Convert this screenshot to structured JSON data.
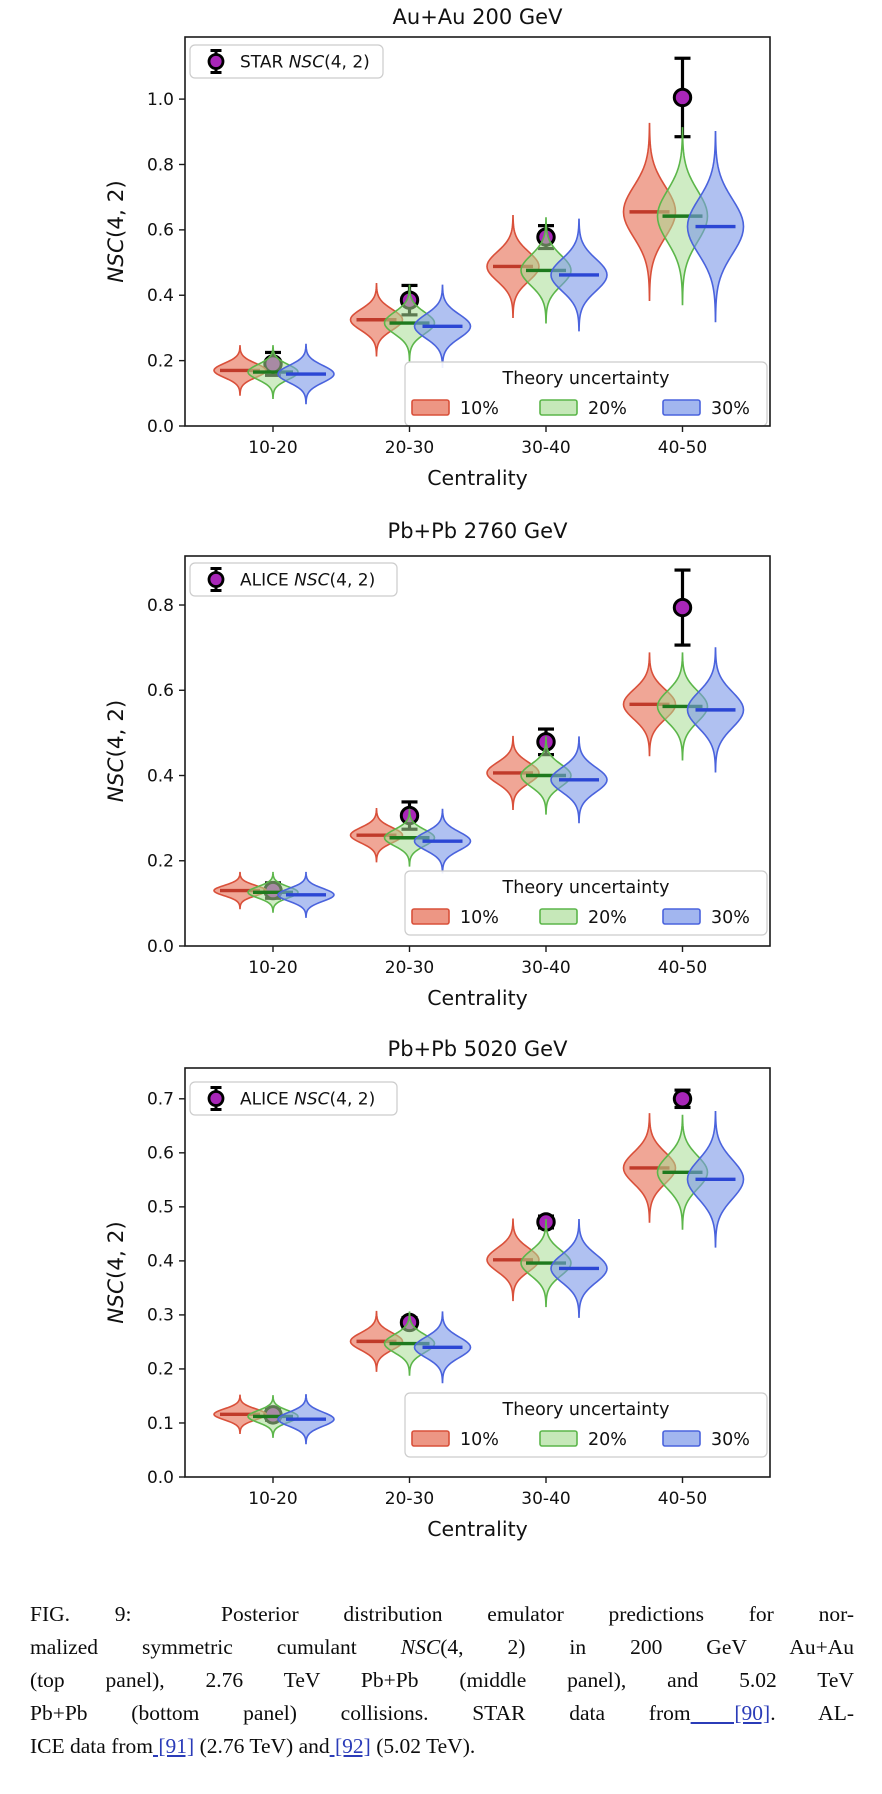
{
  "page": {
    "background": "#ffffff"
  },
  "colors": {
    "axis": "#1a1a1a",
    "text": "#111111",
    "link": "#2b3cb8",
    "legend_border": "#cccccc",
    "data_point": {
      "fill": "#a826b8",
      "edge": "#000000",
      "errorbar": "#000000"
    },
    "violin_10": {
      "fill": "#e66a50",
      "fill_opacity": 0.6,
      "edge": "#d9503a",
      "mean": "#c03a2a"
    },
    "violin_20": {
      "fill": "#a8dc94",
      "fill_opacity": 0.55,
      "edge": "#5cb64a",
      "mean": "#1e7a1e"
    },
    "violin_30": {
      "fill": "#7b97e8",
      "fill_opacity": 0.6,
      "edge": "#4a63dd",
      "mean": "#2b46d4"
    }
  },
  "chart_data": [
    {
      "type": "violin",
      "title": "Au+Au 200 GeV",
      "xlabel": "Centrality",
      "ylabel_math": "NSC",
      "ylabel_rest": "(4, 2)",
      "categories": [
        "10-20",
        "20-30",
        "30-40",
        "40-50"
      ],
      "yticks": [
        0.0,
        0.2,
        0.4,
        0.6,
        0.8,
        1.0
      ],
      "ytick_labels": [
        "0.0",
        "0.2",
        "0.4",
        "0.6",
        "0.8",
        "1.0"
      ],
      "ylim": [
        0,
        1.19
      ],
      "data_series": {
        "label_prefix": "STAR ",
        "label_math": "NSC",
        "label_rest": "(4, 2)",
        "values": [
          0.19,
          0.385,
          0.578,
          1.005
        ],
        "errors": [
          0.035,
          0.045,
          0.035,
          0.12
        ]
      },
      "theory_legend": {
        "title": "Theory uncertainty",
        "entries": [
          "10%",
          "20%",
          "30%"
        ]
      },
      "violin_series": [
        {
          "name": "10%",
          "means": [
            0.17,
            0.325,
            0.488,
            0.655
          ],
          "spreads": [
            0.075,
            0.11,
            0.155,
            0.27
          ]
        },
        {
          "name": "20%",
          "means": [
            0.165,
            0.315,
            0.476,
            0.642
          ],
          "spreads": [
            0.08,
            0.115,
            0.16,
            0.27
          ]
        },
        {
          "name": "30%",
          "means": [
            0.159,
            0.305,
            0.462,
            0.61
          ],
          "spreads": [
            0.09,
            0.125,
            0.17,
            0.29
          ]
        }
      ]
    },
    {
      "type": "violin",
      "title": "Pb+Pb 2760 GeV",
      "xlabel": "Centrality",
      "ylabel_math": "NSC",
      "ylabel_rest": "(4, 2)",
      "categories": [
        "10-20",
        "20-30",
        "30-40",
        "40-50"
      ],
      "yticks": [
        0.0,
        0.2,
        0.4,
        0.6,
        0.8
      ],
      "ytick_labels": [
        "0.0",
        "0.2",
        "0.4",
        "0.6",
        "0.8"
      ],
      "ylim": [
        0,
        0.915
      ],
      "data_series": {
        "label_prefix": "ALICE ",
        "label_math": "NSC",
        "label_rest": "(4, 2)",
        "values": [
          0.13,
          0.306,
          0.479,
          0.794
        ],
        "errors": [
          0.018,
          0.032,
          0.03,
          0.088
        ]
      },
      "theory_legend": {
        "title": "Theory uncertainty",
        "entries": [
          "10%",
          "20%",
          "30%"
        ]
      },
      "violin_series": [
        {
          "name": "10%",
          "means": [
            0.13,
            0.26,
            0.406,
            0.567
          ],
          "spreads": [
            0.042,
            0.062,
            0.085,
            0.12
          ]
        },
        {
          "name": "20%",
          "means": [
            0.126,
            0.254,
            0.4,
            0.562
          ],
          "spreads": [
            0.046,
            0.066,
            0.09,
            0.125
          ]
        },
        {
          "name": "30%",
          "means": [
            0.12,
            0.246,
            0.39,
            0.554
          ],
          "spreads": [
            0.052,
            0.074,
            0.1,
            0.145
          ]
        }
      ]
    },
    {
      "type": "violin",
      "title": "Pb+Pb 5020 GeV",
      "xlabel": "Centrality",
      "ylabel_math": "NSC",
      "ylabel_rest": "(4, 2)",
      "categories": [
        "10-20",
        "20-30",
        "30-40",
        "40-50"
      ],
      "yticks": [
        0.0,
        0.1,
        0.2,
        0.3,
        0.4,
        0.5,
        0.6,
        0.7
      ],
      "ytick_labels": [
        "0.0",
        "0.1",
        "0.2",
        "0.3",
        "0.4",
        "0.5",
        "0.6",
        "0.7"
      ],
      "ylim": [
        0,
        0.757
      ],
      "data_series": {
        "label_prefix": "ALICE ",
        "label_math": "NSC",
        "label_rest": "(4, 2)",
        "values": [
          0.115,
          0.286,
          0.472,
          0.7
        ],
        "errors": [
          0.01,
          0.009,
          0.011,
          0.016
        ]
      },
      "theory_legend": {
        "title": "Theory uncertainty",
        "entries": [
          "10%",
          "20%",
          "30%"
        ]
      },
      "violin_series": [
        {
          "name": "10%",
          "means": [
            0.116,
            0.251,
            0.402,
            0.572
          ],
          "spreads": [
            0.035,
            0.055,
            0.075,
            0.1
          ]
        },
        {
          "name": "20%",
          "means": [
            0.112,
            0.247,
            0.396,
            0.564
          ],
          "spreads": [
            0.038,
            0.058,
            0.08,
            0.105
          ]
        },
        {
          "name": "30%",
          "means": [
            0.107,
            0.24,
            0.386,
            0.551
          ],
          "spreads": [
            0.045,
            0.065,
            0.09,
            0.125
          ]
        }
      ]
    }
  ],
  "caption": {
    "lines": [
      {
        "justify": true,
        "segs": [
          {
            "t": "FIG. 9:  Posterior distribution emulator predictions for nor-"
          }
        ]
      },
      {
        "justify": true,
        "segs": [
          {
            "t": "malized symmetric cumulant "
          },
          {
            "t": "NSC",
            "i": true
          },
          {
            "t": "(4, 2) in 200 GeV Au+Au"
          }
        ]
      },
      {
        "justify": true,
        "segs": [
          {
            "t": "(top panel), 2.76 TeV Pb+Pb (middle panel), and 5.02 TeV"
          }
        ]
      },
      {
        "justify": true,
        "segs": [
          {
            "t": "Pb+Pb (bottom panel) collisions. STAR data from"
          },
          {
            "t": " [90]",
            "l": true,
            "ref": "90"
          },
          {
            "t": ". AL-"
          }
        ]
      },
      {
        "justify": false,
        "segs": [
          {
            "t": "ICE data from"
          },
          {
            "t": " [91]",
            "l": true,
            "ref": "91"
          },
          {
            "t": " (2.76 TeV) and"
          },
          {
            "t": " [92]",
            "l": true,
            "ref": "92"
          },
          {
            "t": " (5.02 TeV)."
          }
        ]
      }
    ]
  }
}
